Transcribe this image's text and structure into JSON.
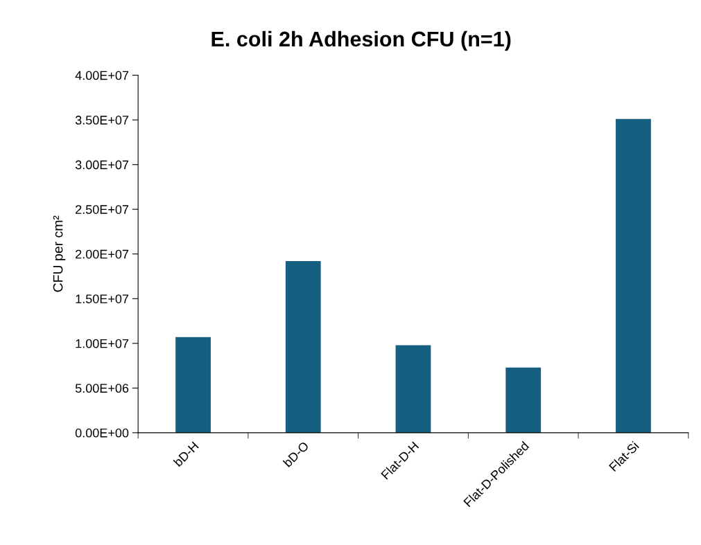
{
  "chart_data": {
    "type": "bar",
    "title": "E. coli 2h Adhesion CFU (n=1)",
    "ylabel": "CFU per cm²",
    "categories": [
      "bD-H",
      "bD-O",
      "Flat-D-H",
      "Flat-D-Polished",
      "Flat-Si"
    ],
    "values": [
      10700000,
      19200000,
      9800000,
      7300000,
      35100000
    ],
    "color": "#175f80",
    "ylim": [
      0,
      40000000
    ],
    "yticks": [
      {
        "value": 0,
        "label": "0.00E+00"
      },
      {
        "value": 5000000,
        "label": "5.00E+06"
      },
      {
        "value": 10000000,
        "label": "1.00E+07"
      },
      {
        "value": 15000000,
        "label": "1.50E+07"
      },
      {
        "value": 20000000,
        "label": "2.00E+07"
      },
      {
        "value": 25000000,
        "label": "2.50E+07"
      },
      {
        "value": 30000000,
        "label": "3.00E+07"
      },
      {
        "value": 35000000,
        "label": "3.50E+07"
      },
      {
        "value": 40000000,
        "label": "4.00E+07"
      }
    ],
    "grid": false
  }
}
